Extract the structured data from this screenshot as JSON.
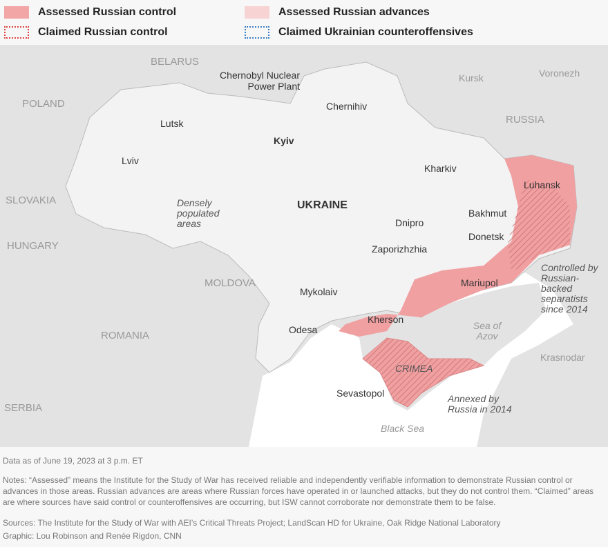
{
  "legend": [
    {
      "label": "Assessed Russian control",
      "color": "#f3a6a6",
      "style": "fill"
    },
    {
      "label": "Assessed Russian advances",
      "color": "#f8d3d3",
      "style": "fill"
    },
    {
      "label": "Claimed Russian control",
      "color": "#e04545",
      "style": "dotted"
    },
    {
      "label": "Claimed Ukrainian counteroffensives",
      "color": "#3a7fc4",
      "style": "dotted"
    }
  ],
  "countries": {
    "belarus": "BELARUS",
    "poland": "POLAND",
    "slovakia": "SLOVAKIA",
    "hungary": "HUNGARY",
    "moldova": "MOLDOVA",
    "romania": "ROMANIA",
    "serbia": "SERBIA",
    "russia": "RUSSIA",
    "ukraine": "UKRAINE"
  },
  "cities": {
    "chernobyl": "Chernobyl Nuclear Power Plant",
    "chernihiv": "Chernihiv",
    "lutsk": "Lutsk",
    "kyiv": "Kyiv",
    "lviv": "Lviv",
    "kharkiv": "Kharkiv",
    "luhansk": "Luhansk",
    "bakhmut": "Bakhmut",
    "dnipro": "Dnipro",
    "donetsk": "Donetsk",
    "zaporizhzhia": "Zaporizhzhia",
    "mariupol": "Mariupol",
    "mykolaiv": "Mykolaiv",
    "kherson": "Kherson",
    "odesa": "Odesa",
    "sevastopol": "Sevastopol",
    "kursk": "Kursk",
    "voronezh": "Voronezh",
    "krasnodar": "Krasnodar",
    "crimea": "CRIMEA"
  },
  "annotations": {
    "densely": "Densely populated areas",
    "separatists": "Controlled by Russian-backed separatists since 2014",
    "annexed": "Annexed by Russia in 2014"
  },
  "seas": {
    "azov": "Sea of Azov",
    "black": "Black Sea"
  },
  "footer": {
    "date": "Data as of June 19, 2023 at 3 p.m. ET",
    "notes": "Notes: “Assessed” means the Institute for the Study of War has received reliable and independently verifiable information to demonstrate Russian control or advances in those areas. Russian advances are areas where Russian forces have operated in or launched attacks, but they do not control them. “Claimed” areas are where sources have said control or counteroffensives are occurring, but ISW cannot corroborate nor demonstrate them to be false.",
    "sources": "Sources: The Institute for the Study of War with AEI’s Critical Threats Project; LandScan HD for Ukraine, Oak Ridge National Laboratory",
    "graphic": "Graphic: Lou Robinson and Renée Rigdon, CNN"
  }
}
